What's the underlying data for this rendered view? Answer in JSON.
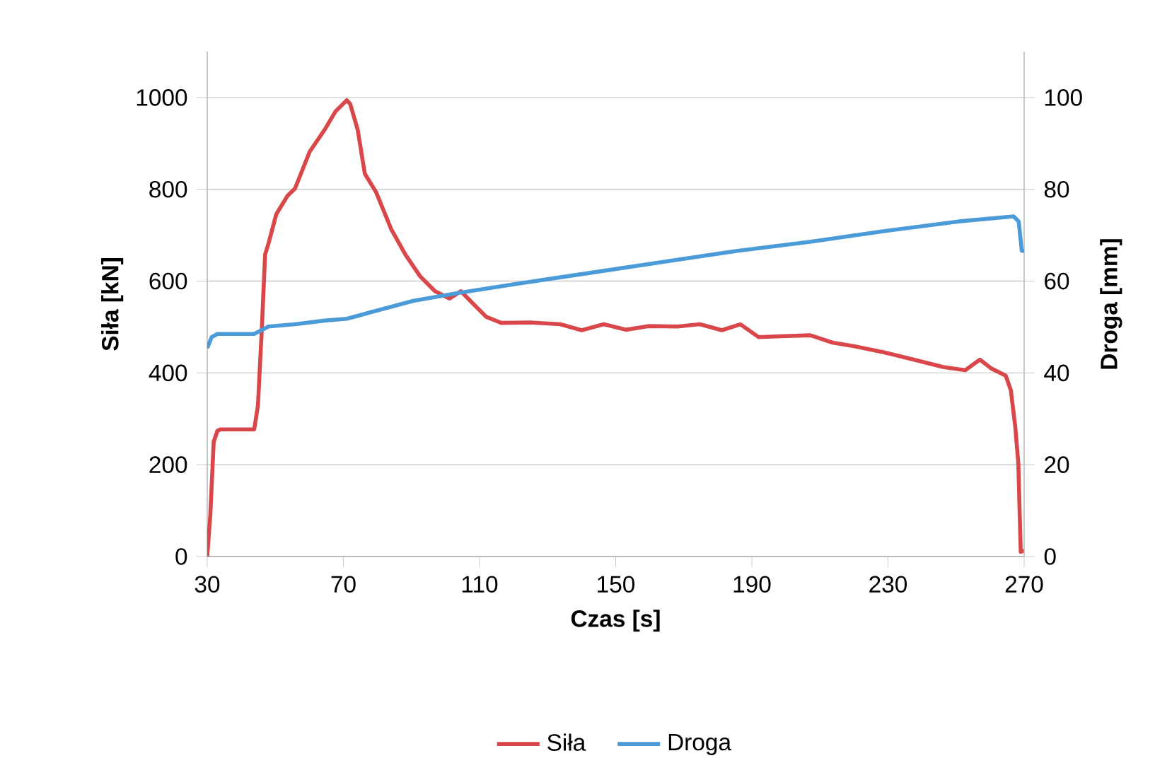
{
  "chart_data": {
    "type": "line",
    "xlabel": "Czas [s]",
    "ylabel": "Siła [kN]",
    "y2label": "Droga [mm]",
    "xlim": [
      30,
      270
    ],
    "xticks": [
      30,
      70,
      110,
      150,
      190,
      230,
      270
    ],
    "ylim": [
      0,
      1100
    ],
    "yticks": [
      0,
      200,
      400,
      600,
      800,
      1000
    ],
    "y2lim": [
      0,
      110
    ],
    "y2ticks": [
      0,
      20,
      40,
      60,
      80,
      100
    ],
    "grid": "y",
    "legend": "bottom",
    "line_style": "solid",
    "marker": "none",
    "series": [
      {
        "name": "Siła",
        "color": "#d9474a",
        "x": [
          30,
          30.9,
          31.9,
          33,
          34,
          43.8,
          44.9,
          46,
          47,
          48,
          50.3,
          53.6,
          55.8,
          60.1,
          64.5,
          67.7,
          71,
          72,
          74.2,
          76.3,
          79.6,
          84,
          88.2,
          92.6,
          96.9,
          101.2,
          104.5,
          107.7,
          112,
          116.4,
          125,
          133.7,
          140,
          146.5,
          153,
          159.6,
          168.2,
          174.7,
          181.2,
          186.6,
          192,
          198.5,
          207.2,
          213.7,
          220.2,
          228.8,
          237.5,
          246.2,
          252.7,
          257,
          260.3,
          264.6,
          266.1,
          267.4,
          268.3,
          268.7,
          269,
          270
        ],
        "values": [
          0,
          90,
          250,
          274,
          277,
          277,
          330,
          490,
          658,
          682,
          746,
          786,
          802,
          882,
          930,
          970,
          994,
          986,
          930,
          834,
          794,
          714,
          658,
          610,
          578,
          562,
          578,
          554,
          522,
          509,
          510,
          506,
          493,
          506,
          494,
          502,
          501,
          506,
          493,
          506,
          478,
          480,
          482,
          466,
          458,
          445,
          429,
          413,
          406,
          429,
          410,
          394,
          362,
          282,
          202,
          90,
          10,
          13
        ]
      },
      {
        "name": "Droga",
        "color": "#4a9bd8",
        "axis": "y2",
        "x": [
          30,
          31.3,
          33,
          38.4,
          43.8,
          48,
          55.8,
          64.5,
          71,
          77.5,
          90.5,
          103.5,
          120.8,
          142.5,
          164.1,
          185.8,
          207.4,
          229,
          250.7,
          266.9,
          268.4,
          269.3,
          270
        ],
        "values": [
          45.4,
          47.8,
          48.5,
          48.5,
          48.5,
          50.1,
          50.6,
          51.4,
          51.8,
          53.1,
          55.7,
          57.4,
          59.4,
          61.8,
          64.2,
          66.6,
          68.6,
          70.9,
          73,
          74.1,
          73,
          66.6,
          66.6
        ]
      }
    ]
  }
}
